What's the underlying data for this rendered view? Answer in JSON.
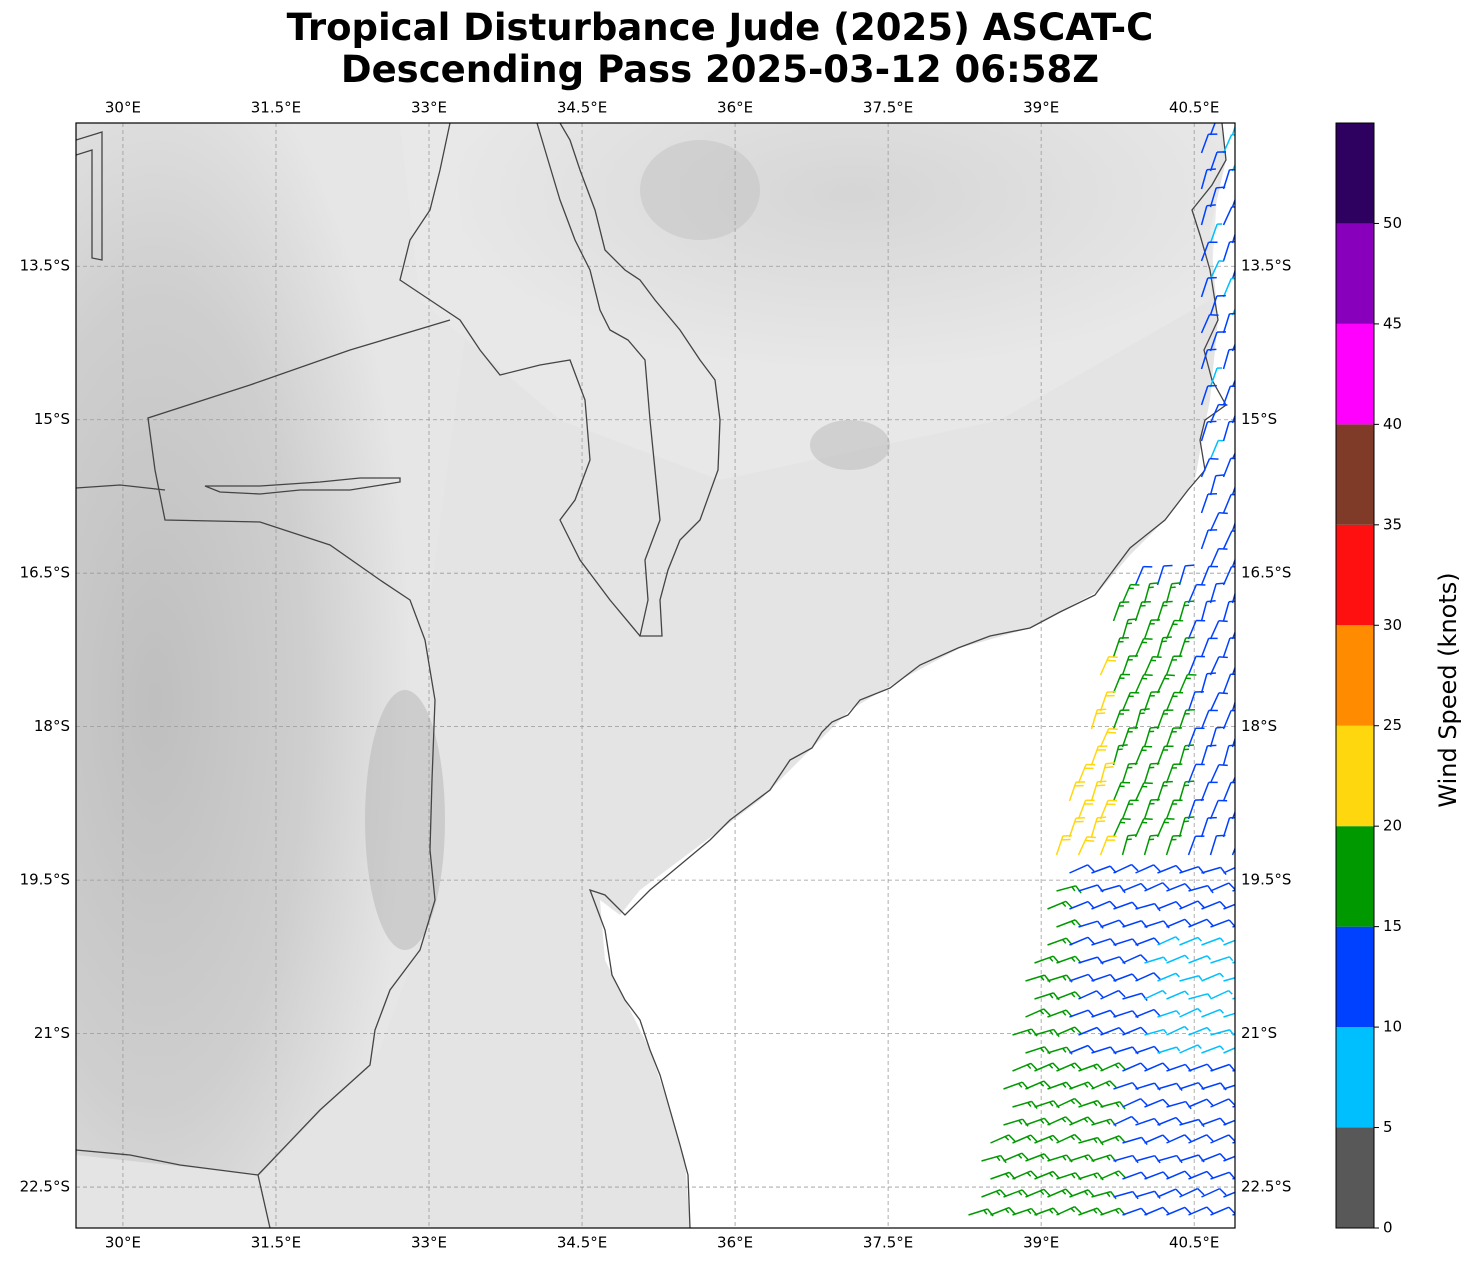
{
  "title": {
    "line1": "Tropical Disturbance Jude (2025) ASCAT-C",
    "line2": "Descending Pass 2025-03-12 06:58Z"
  },
  "map": {
    "lon_ticks": [
      {
        "lon": 30.0,
        "label": "30°E"
      },
      {
        "lon": 31.5,
        "label": "31.5°E"
      },
      {
        "lon": 33.0,
        "label": "33°E"
      },
      {
        "lon": 34.5,
        "label": "34.5°E"
      },
      {
        "lon": 36.0,
        "label": "36°E"
      },
      {
        "lon": 37.5,
        "label": "37.5°E"
      },
      {
        "lon": 39.0,
        "label": "39°E"
      },
      {
        "lon": 40.5,
        "label": "40.5°E"
      }
    ],
    "lat_ticks": [
      {
        "lat": -13.5,
        "label": "13.5°S"
      },
      {
        "lat": -15.0,
        "label": "15°S"
      },
      {
        "lat": -16.5,
        "label": "16.5°S"
      },
      {
        "lat": -18.0,
        "label": "18°S"
      },
      {
        "lat": -19.5,
        "label": "19.5°S"
      },
      {
        "lat": -21.0,
        "label": "21°S"
      },
      {
        "lat": -22.5,
        "label": "22.5°S"
      }
    ],
    "lon_range": [
      29.54,
      40.9
    ],
    "lat_range": [
      -22.9,
      -12.1
    ],
    "gridlines": true,
    "background": "grayscale topography (land), white ocean"
  },
  "colorbar": {
    "label": "Wind Speed (knots)",
    "tick_labels": [
      "0",
      "5",
      "10",
      "15",
      "20",
      "25",
      "30",
      "35",
      "40",
      "45",
      "50"
    ],
    "bins": [
      {
        "from": 0,
        "to": 5,
        "color": "#585858"
      },
      {
        "from": 5,
        "to": 10,
        "color": "#00bfff"
      },
      {
        "from": 10,
        "to": 15,
        "color": "#0040ff"
      },
      {
        "from": 15,
        "to": 20,
        "color": "#009900"
      },
      {
        "from": 20,
        "to": 25,
        "color": "#ffd70f"
      },
      {
        "from": 25,
        "to": 30,
        "color": "#ff8c00"
      },
      {
        "from": 30,
        "to": 35,
        "color": "#ff1010"
      },
      {
        "from": 35,
        "to": 40,
        "color": "#7f3a28"
      },
      {
        "from": 40,
        "to": 45,
        "color": "#ff00ff"
      },
      {
        "from": 45,
        "to": 50,
        "color": "#8800bb"
      },
      {
        "from": 50,
        "to": 55,
        "color": "#2e005f"
      }
    ]
  }
}
